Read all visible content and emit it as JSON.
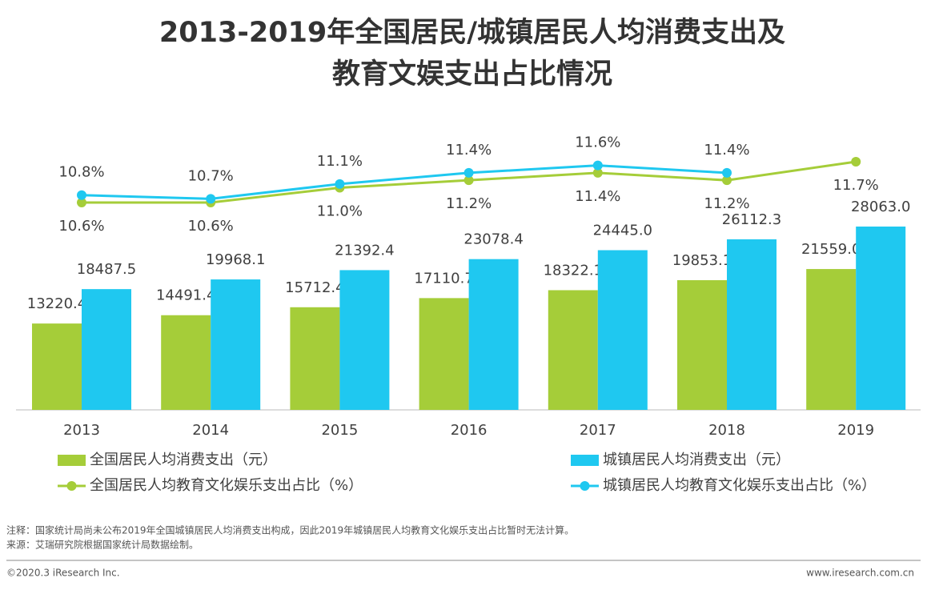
{
  "title": [
    "2013-2019年全国居民/城镇居民人均消费支出及",
    "教育文娱支出占比情况"
  ],
  "chart_data": {
    "type": "combo",
    "categories": [
      "2013",
      "2014",
      "2015",
      "2016",
      "2017",
      "2018",
      "2019"
    ],
    "series": [
      {
        "name": "全国居民人均消费支出（元）",
        "type": "bar",
        "color": "#a5cd39",
        "values": [
          13220.4,
          14491.4,
          15712.4,
          17110.7,
          18322.1,
          19853.1,
          21559.0
        ],
        "value_labels": [
          "13220.4",
          "14491.4",
          "15712.4",
          "17110.7",
          "18322.1",
          "19853.1",
          "21559.0"
        ]
      },
      {
        "name": "城镇居民人均消费支出（元）",
        "type": "bar",
        "color": "#1fc8f0",
        "values": [
          18487.5,
          19968.1,
          21392.4,
          23078.4,
          24445.0,
          26112.3,
          28063.0
        ],
        "value_labels": [
          "18487.5",
          "19968.1",
          "21392.4",
          "23078.4",
          "24445.0",
          "26112.3",
          "28063.0"
        ]
      },
      {
        "name": "全国居民人均教育文化娱乐支出占比（%）",
        "type": "line",
        "axis": "y2",
        "color": "#a5cd39",
        "values": [
          10.6,
          10.6,
          11.0,
          11.2,
          11.4,
          11.2,
          11.7
        ],
        "value_labels": [
          "10.6%",
          "10.6%",
          "11.0%",
          "11.2%",
          "11.4%",
          "11.2%",
          "11.7%"
        ]
      },
      {
        "name": "城镇居民人均教育文化娱乐支出占比（%）",
        "type": "line",
        "axis": "y2",
        "color": "#1fc8f0",
        "values": [
          10.8,
          10.7,
          11.1,
          11.4,
          11.6,
          11.4,
          null
        ],
        "value_labels": [
          "10.8%",
          "10.7%",
          "11.1%",
          "11.4%",
          "11.6%",
          "11.4%",
          null
        ]
      }
    ]
  },
  "notes": [
    "注释：国家统计局尚未公布2019年全国城镇居民人均消费支出构成，因此2019年城镇居民人均教育文化娱乐支出占比暂时无法计算。",
    "来源：艾瑞研究院根据国家统计局数据绘制。"
  ],
  "footer": {
    "copyright": "©2020.3 iResearch Inc.",
    "website": "www.iresearch.com.cn"
  }
}
